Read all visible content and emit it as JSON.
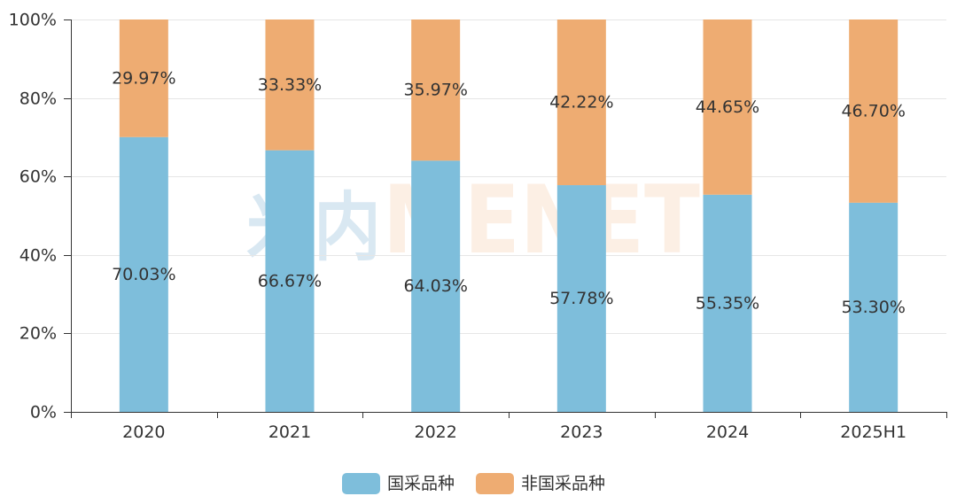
{
  "watermark": {
    "cn": "米内",
    "en": "MENET",
    "cn_color": "#d9e8f2",
    "en_color": "#fcefe4"
  },
  "chart_data": {
    "type": "bar",
    "stacked": true,
    "categories": [
      "2020",
      "2021",
      "2022",
      "2023",
      "2024",
      "2025H1"
    ],
    "series": [
      {
        "name": "国采品种",
        "color": "#7ebedb",
        "values": [
          70.03,
          66.67,
          64.03,
          57.78,
          55.35,
          53.3
        ]
      },
      {
        "name": "非国采品种",
        "color": "#eeac72",
        "values": [
          29.97,
          33.33,
          35.97,
          42.22,
          44.65,
          46.7
        ]
      }
    ],
    "unit": "%",
    "ylim": [
      0,
      100
    ],
    "yticks": [
      0,
      20,
      40,
      60,
      80,
      100
    ],
    "grid": true,
    "legend": "bottom-center"
  }
}
